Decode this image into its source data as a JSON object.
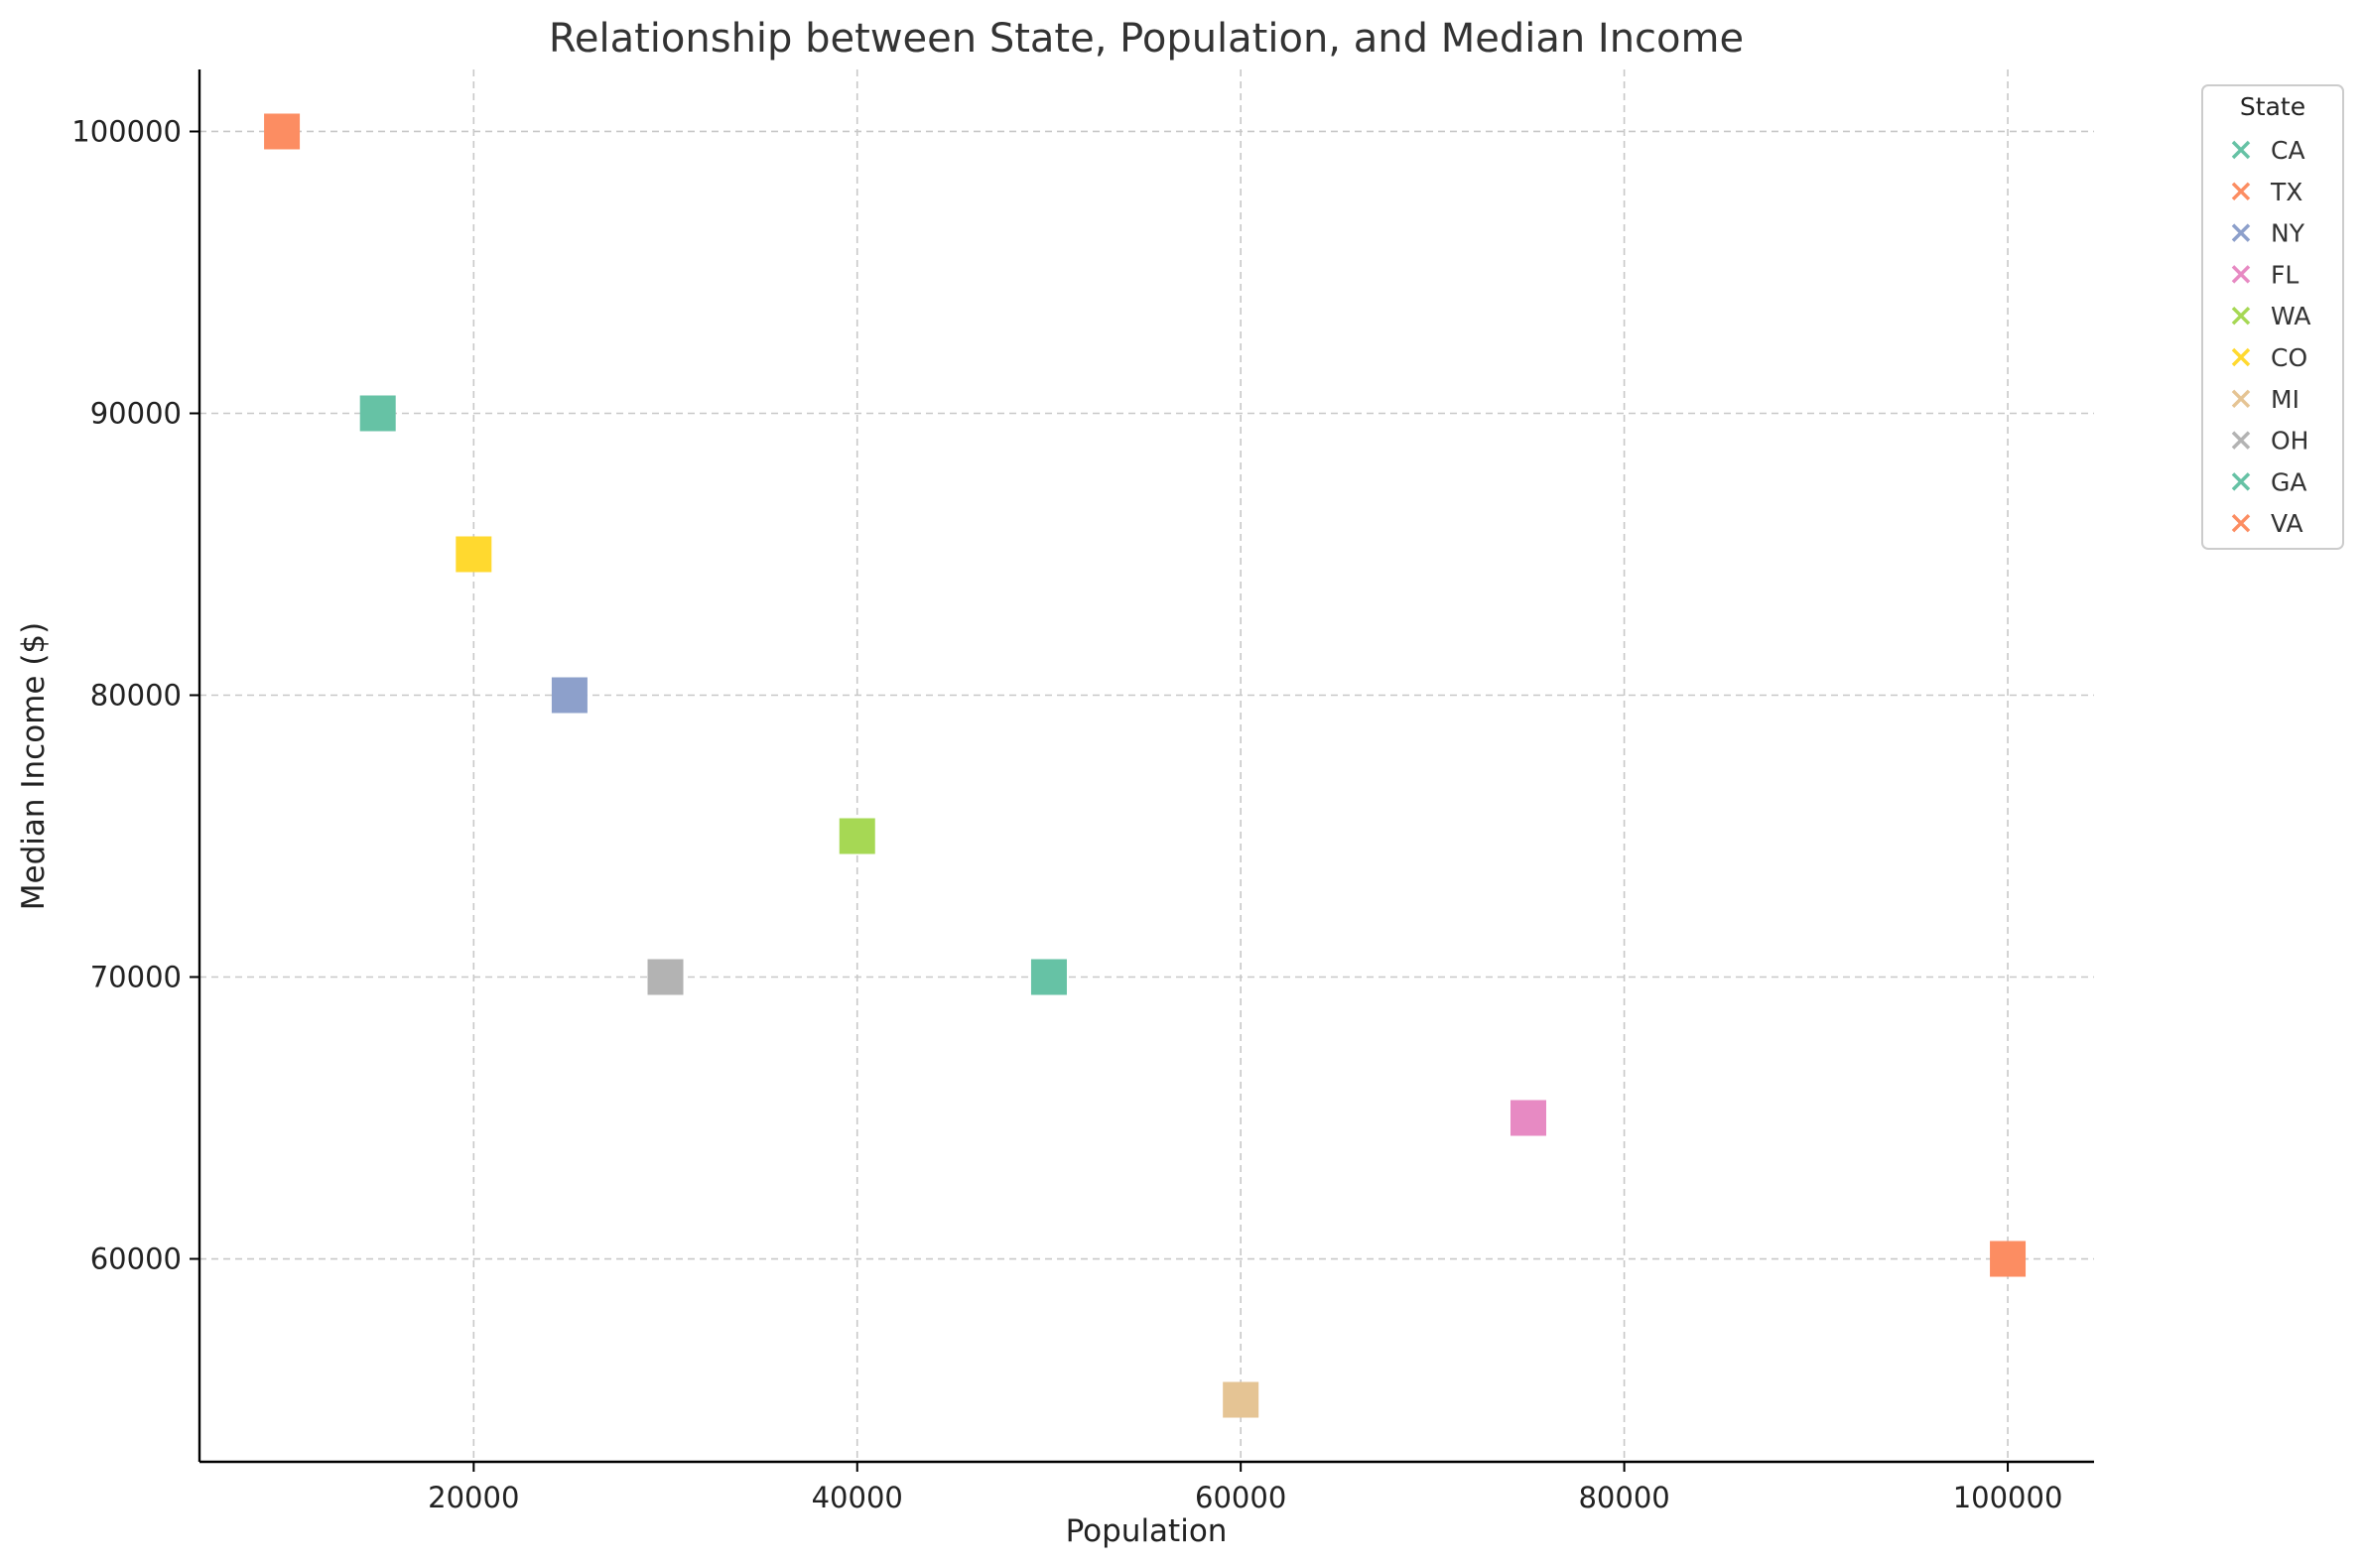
{
  "chart_data": {
    "type": "scatter",
    "title": "Relationship between State, Population, and Median Income",
    "xlabel": "Population",
    "ylabel": "Median Income ($)",
    "xlim": [
      5700,
      104500
    ],
    "ylim": [
      52800,
      102200
    ],
    "xticks": [
      20000,
      40000,
      60000,
      80000,
      100000
    ],
    "yticks": [
      60000,
      70000,
      80000,
      90000,
      100000
    ],
    "grid": true,
    "legend": {
      "title": "State",
      "placement": "upper-right-outside",
      "marker": "x",
      "entries": [
        {
          "label": "CA",
          "color": "#66c2a5"
        },
        {
          "label": "TX",
          "color": "#fc8d62"
        },
        {
          "label": "NY",
          "color": "#8da0cb"
        },
        {
          "label": "FL",
          "color": "#e78ac3"
        },
        {
          "label": "WA",
          "color": "#a6d854"
        },
        {
          "label": "CO",
          "color": "#ffd92f"
        },
        {
          "label": "MI",
          "color": "#e5c494"
        },
        {
          "label": "OH",
          "color": "#b3b3b3"
        },
        {
          "label": "GA",
          "color": "#66c2a5"
        },
        {
          "label": "VA",
          "color": "#fc8d62"
        }
      ]
    },
    "marker": "square",
    "points": [
      {
        "x": 50000,
        "y": 70000,
        "color": "#66c2a5"
      },
      {
        "x": 100000,
        "y": 60000,
        "color": "#fc8d62"
      },
      {
        "x": 25000,
        "y": 80000,
        "color": "#8da0cb"
      },
      {
        "x": 75000,
        "y": 65000,
        "color": "#e78ac3"
      },
      {
        "x": 40000,
        "y": 75000,
        "color": "#a6d854"
      },
      {
        "x": 20000,
        "y": 85000,
        "color": "#ffd92f"
      },
      {
        "x": 60000,
        "y": 55000,
        "color": "#e5c494"
      },
      {
        "x": 30000,
        "y": 70000,
        "color": "#b3b3b3"
      },
      {
        "x": 15000,
        "y": 90000,
        "color": "#66c2a5"
      },
      {
        "x": 10000,
        "y": 100000,
        "color": "#fc8d62"
      }
    ]
  }
}
